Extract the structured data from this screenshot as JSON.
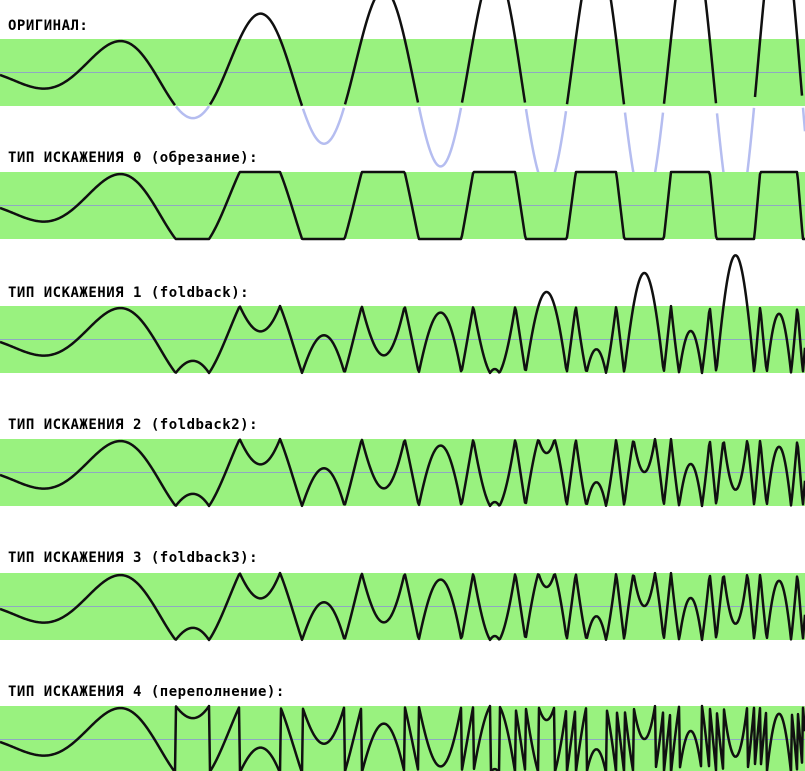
{
  "colors": {
    "band": "#99f27f",
    "midline": "#8fa9c2",
    "wave": "#101010",
    "clipped_part": "#b5bdf0",
    "background": "#ffffff"
  },
  "panels": [
    {
      "id": "original",
      "label": "ОРИГИНАЛ:",
      "mode": "original"
    },
    {
      "id": "type0",
      "label": "ТИП ИСКАЖЕНИЯ 0 (обрезание):",
      "mode": "clip"
    },
    {
      "id": "type1",
      "label": "ТИП ИСКАЖЕНИЯ 1 (foldback):",
      "mode": "fold1"
    },
    {
      "id": "type2",
      "label": "ТИП ИСКАЖЕНИЯ 2 (foldback2):",
      "mode": "fold2"
    },
    {
      "id": "type3",
      "label": "ТИП ИСКАЖЕНИЯ 3 (foldback3):",
      "mode": "fold3"
    },
    {
      "id": "type4",
      "label": "ТИП ИСКАЖЕНИЯ 4 (переполнение):",
      "mode": "wrap"
    }
  ]
}
